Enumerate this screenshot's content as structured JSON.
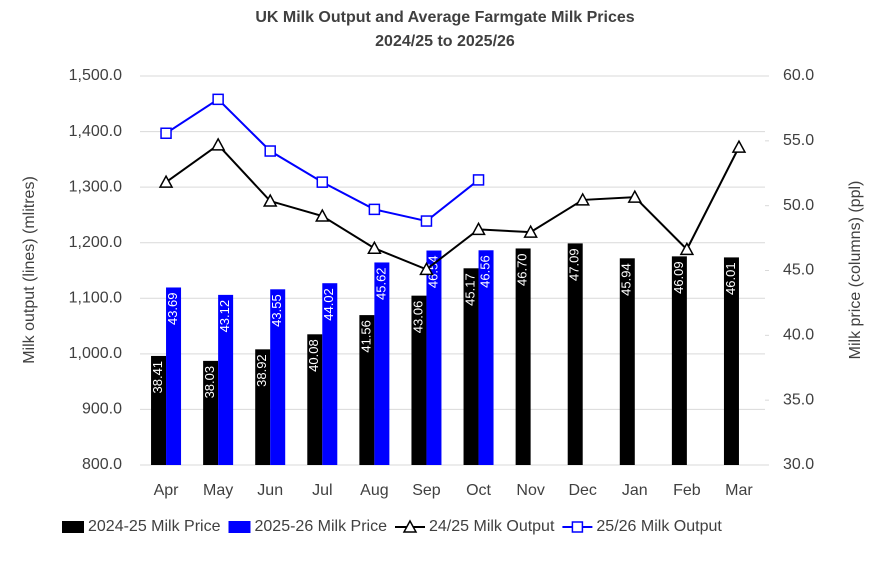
{
  "chart_data": {
    "type": "bar-line",
    "title": "UK Milk Output and Average Farmgate Milk Prices",
    "subtitle": "2024/25 to 2025/26",
    "y_label": "Milk output (lines) (mlitres)",
    "y2_label": "Milk price (columns) (ppl)",
    "categories": [
      "Apr",
      "May",
      "Jun",
      "Jul",
      "Aug",
      "Sep",
      "Oct",
      "Nov",
      "Dec",
      "Jan",
      "Feb",
      "Mar"
    ],
    "ylim": [
      800,
      1500
    ],
    "yticks": [
      {
        "value": 800,
        "label": "800.0"
      },
      {
        "value": 900,
        "label": "900.0"
      },
      {
        "value": 1000,
        "label": "1,000.0"
      },
      {
        "value": 1100,
        "label": "1,100.0"
      },
      {
        "value": 1200,
        "label": "1,200.0"
      },
      {
        "value": 1300,
        "label": "1,300.0"
      },
      {
        "value": 1400,
        "label": "1,400.0"
      },
      {
        "value": 1500,
        "label": "1,500.0"
      }
    ],
    "y2lim": [
      30,
      60
    ],
    "y2ticks": [
      {
        "value": 30,
        "label": "30.0"
      },
      {
        "value": 35,
        "label": "35.0"
      },
      {
        "value": 40,
        "label": "40.0"
      },
      {
        "value": 45,
        "label": "45.0"
      },
      {
        "value": 50,
        "label": "50.0"
      },
      {
        "value": 55,
        "label": "55.0"
      },
      {
        "value": 60,
        "label": "60.0"
      }
    ],
    "series": [
      {
        "name": "2024-25 Milk Price",
        "kind": "bar",
        "axis": "y2",
        "color": "#000000",
        "values": [
          38.41,
          38.03,
          38.92,
          40.08,
          41.56,
          43.06,
          45.17,
          46.7,
          47.09,
          45.94,
          46.09,
          46.01
        ],
        "value_labels": [
          "38.41",
          "38.03",
          "38.92",
          "40.08",
          "41.56",
          "43.06",
          "45.17",
          "46.70",
          "47.09",
          "45.94",
          "46.09",
          "46.01"
        ]
      },
      {
        "name": "2025-26 Milk Price",
        "kind": "bar",
        "axis": "y2",
        "color": "#0000ff",
        "values": [
          43.69,
          43.12,
          43.55,
          44.02,
          45.62,
          46.54,
          46.56,
          null,
          null,
          null,
          null,
          null
        ],
        "value_labels": [
          "43.69",
          "43.12",
          "43.55",
          "44.02",
          "45.62",
          "46.54",
          "46.56",
          null,
          null,
          null,
          null,
          null
        ]
      },
      {
        "name": "24/25 Milk Output",
        "kind": "line",
        "marker": "triangle",
        "color": "#000000",
        "values": [
          1309,
          1376,
          1275,
          1248,
          1190,
          1152,
          1224,
          1219,
          1277,
          1282,
          1188,
          1372
        ]
      },
      {
        "name": "25/26 Milk Output",
        "kind": "line",
        "marker": "square",
        "color": "#0000ff",
        "values": [
          1397,
          1458,
          1365,
          1309,
          1260,
          1239,
          1313,
          null,
          null,
          null,
          null,
          null
        ]
      }
    ]
  }
}
